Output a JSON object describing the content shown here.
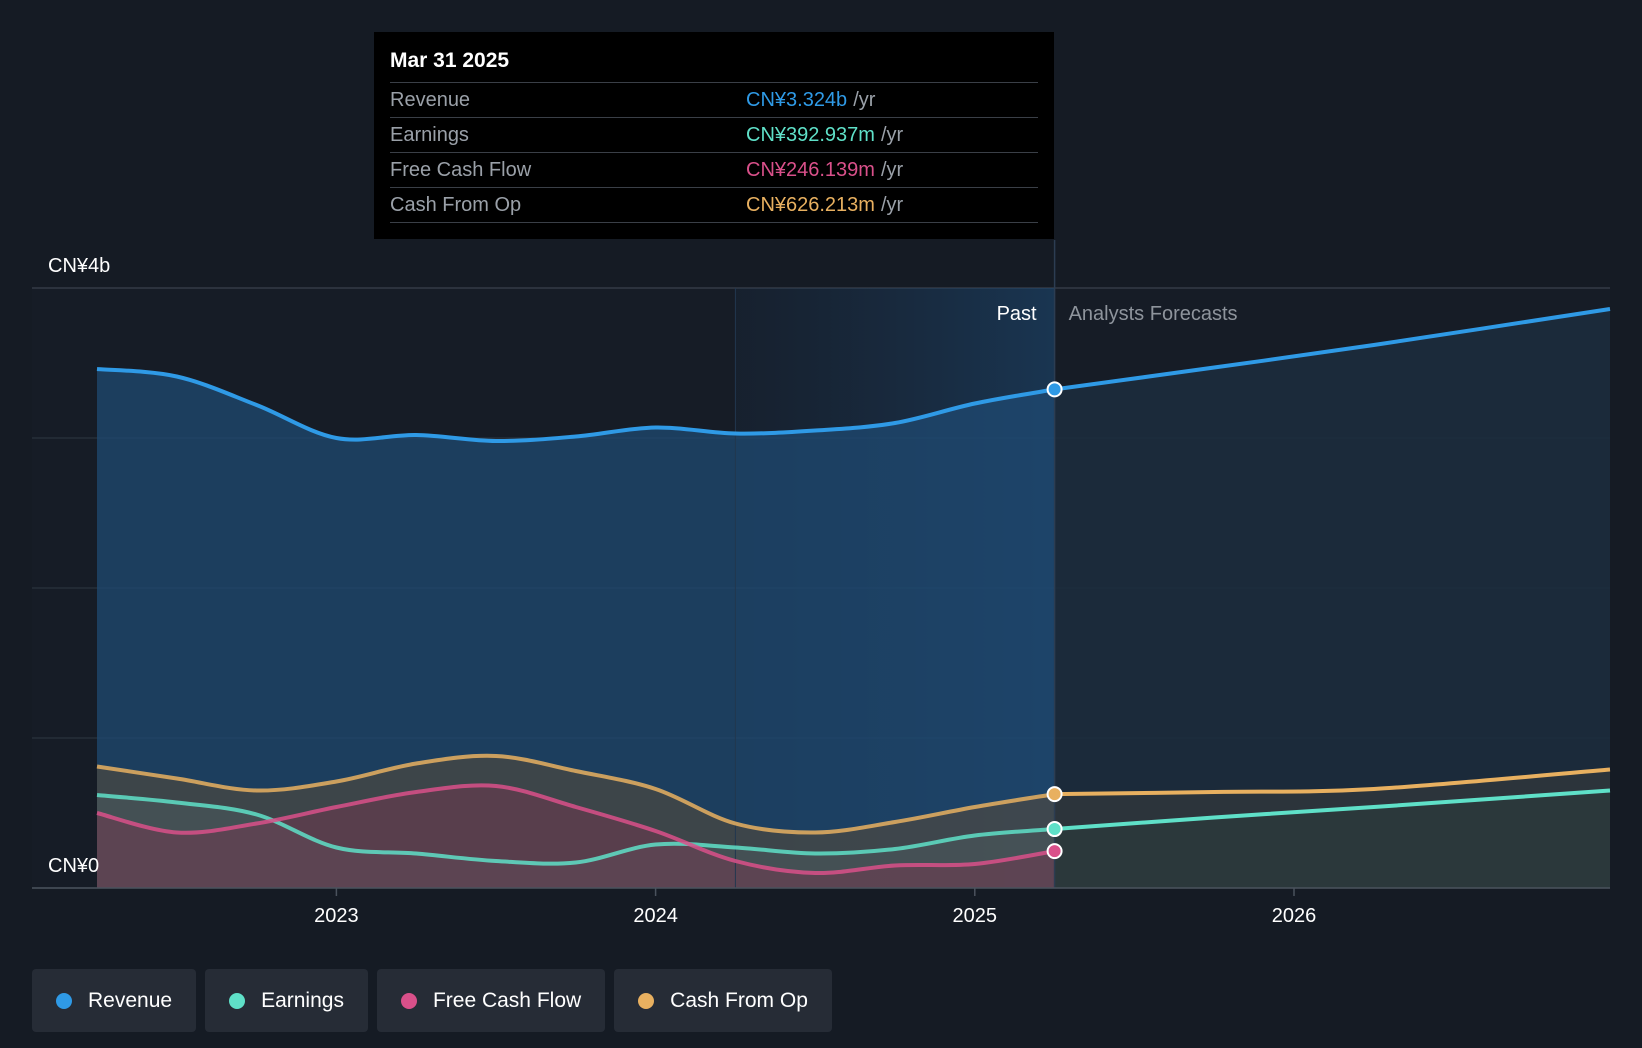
{
  "tooltip": {
    "date": "Mar 31 2025",
    "rows": [
      {
        "label": "Revenue",
        "value": "CN¥3.324b",
        "unit": "/yr",
        "color": "#2f9ae6"
      },
      {
        "label": "Earnings",
        "value": "CN¥392.937m",
        "unit": "/yr",
        "color": "#5fe0c8"
      },
      {
        "label": "Free Cash Flow",
        "value": "CN¥246.139m",
        "unit": "/yr",
        "color": "#d9508a"
      },
      {
        "label": "Cash From Op",
        "value": "CN¥626.213m",
        "unit": "/yr",
        "color": "#e8b060"
      }
    ]
  },
  "legend": [
    {
      "label": "Revenue",
      "color": "#2f9ae6"
    },
    {
      "label": "Earnings",
      "color": "#5fe0c8"
    },
    {
      "label": "Free Cash Flow",
      "color": "#d9508a"
    },
    {
      "label": "Cash From Op",
      "color": "#e8b060"
    }
  ],
  "chart_data": {
    "type": "area",
    "title": "",
    "y_unit": "CN¥",
    "ylim": [
      0,
      4.0
    ],
    "xlim": [
      2022.2,
      2026.99
    ],
    "y_tick_labels": [
      {
        "value": 4.0,
        "label": "CN¥4b"
      },
      {
        "value": 0,
        "label": "CN¥0"
      }
    ],
    "y_gridlines": [
      0,
      1,
      2,
      3,
      4
    ],
    "x_ticks": [
      {
        "value": 2023,
        "label": "2023"
      },
      {
        "value": 2024,
        "label": "2024"
      },
      {
        "value": 2025,
        "label": "2025"
      },
      {
        "value": 2026,
        "label": "2026"
      }
    ],
    "past_label": "Past",
    "forecast_label": "Analysts Forecasts",
    "divider_x": 2025.25,
    "highlight_start_x": 2024.25,
    "series": [
      {
        "name": "Revenue",
        "color": "#2f9ae6",
        "past": [
          [
            2022.25,
            3.46
          ],
          [
            2022.5,
            3.41
          ],
          [
            2022.75,
            3.22
          ],
          [
            2023.0,
            3.0
          ],
          [
            2023.25,
            3.02
          ],
          [
            2023.5,
            2.98
          ],
          [
            2023.75,
            3.01
          ],
          [
            2024.0,
            3.07
          ],
          [
            2024.25,
            3.03
          ],
          [
            2024.5,
            3.05
          ],
          [
            2024.75,
            3.1
          ],
          [
            2025.0,
            3.23
          ],
          [
            2025.25,
            3.324
          ]
        ],
        "forecast": [
          [
            2025.25,
            3.324
          ],
          [
            2025.75,
            3.47
          ],
          [
            2026.25,
            3.62
          ],
          [
            2026.99,
            3.86
          ]
        ]
      },
      {
        "name": "Cash From Op",
        "color": "#e8b060",
        "past": [
          [
            2022.25,
            0.81
          ],
          [
            2022.5,
            0.73
          ],
          [
            2022.75,
            0.65
          ],
          [
            2023.0,
            0.71
          ],
          [
            2023.25,
            0.83
          ],
          [
            2023.5,
            0.88
          ],
          [
            2023.75,
            0.78
          ],
          [
            2024.0,
            0.66
          ],
          [
            2024.25,
            0.43
          ],
          [
            2024.5,
            0.37
          ],
          [
            2024.75,
            0.44
          ],
          [
            2025.0,
            0.54
          ],
          [
            2025.25,
            0.626
          ]
        ],
        "forecast": [
          [
            2025.25,
            0.626
          ],
          [
            2025.75,
            0.64
          ],
          [
            2026.25,
            0.66
          ],
          [
            2026.99,
            0.79
          ]
        ]
      },
      {
        "name": "Earnings",
        "color": "#5fe0c8",
        "past": [
          [
            2022.25,
            0.62
          ],
          [
            2022.5,
            0.57
          ],
          [
            2022.75,
            0.49
          ],
          [
            2023.0,
            0.27
          ],
          [
            2023.25,
            0.23
          ],
          [
            2023.5,
            0.18
          ],
          [
            2023.75,
            0.17
          ],
          [
            2024.0,
            0.29
          ],
          [
            2024.25,
            0.27
          ],
          [
            2024.5,
            0.23
          ],
          [
            2024.75,
            0.26
          ],
          [
            2025.0,
            0.35
          ],
          [
            2025.25,
            0.393
          ]
        ],
        "forecast": [
          [
            2025.25,
            0.393
          ],
          [
            2025.75,
            0.47
          ],
          [
            2026.25,
            0.54
          ],
          [
            2026.99,
            0.65
          ]
        ]
      },
      {
        "name": "Free Cash Flow",
        "color": "#d9508a",
        "past": [
          [
            2022.25,
            0.5
          ],
          [
            2022.5,
            0.37
          ],
          [
            2022.75,
            0.43
          ],
          [
            2023.0,
            0.54
          ],
          [
            2023.25,
            0.64
          ],
          [
            2023.5,
            0.68
          ],
          [
            2023.75,
            0.54
          ],
          [
            2024.0,
            0.38
          ],
          [
            2024.25,
            0.18
          ],
          [
            2024.5,
            0.1
          ],
          [
            2024.75,
            0.15
          ],
          [
            2025.0,
            0.16
          ],
          [
            2025.25,
            0.246
          ]
        ],
        "forecast": []
      }
    ]
  }
}
